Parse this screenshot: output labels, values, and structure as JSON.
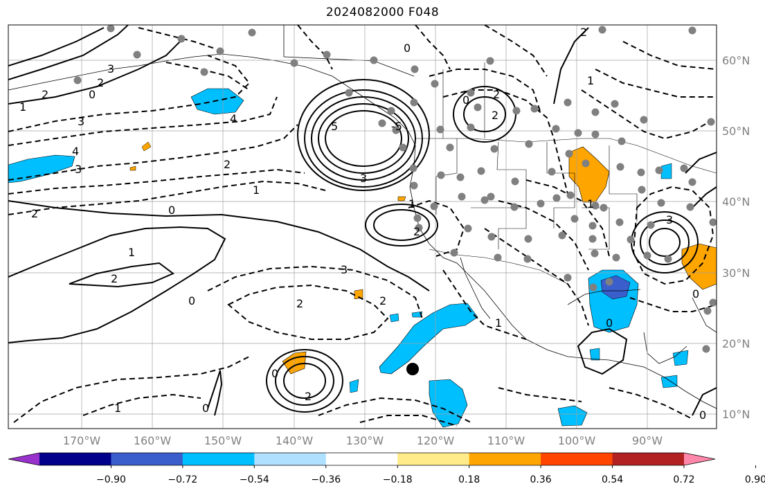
{
  "title": "2024082000 F048",
  "longitude_labels": [
    "170°W",
    "160°W",
    "150°W",
    "140°W",
    "130°W",
    "120°W",
    "110°W",
    "100°W",
    "90°W"
  ],
  "latitude_labels": [
    "60°N",
    "50°N",
    "40°N",
    "30°N",
    "20°N",
    "10°N"
  ],
  "colorbar": {
    "ticks": [
      "−0.90",
      "−0.72",
      "−0.54",
      "−0.36",
      "−0.18",
      "0.18",
      "0.36",
      "0.54",
      "0.72",
      "0.90"
    ],
    "colors": [
      "#9932cc",
      "#00008b",
      "#3a5fcd",
      "#00bfff",
      "#b0e0ff",
      "#ffffff",
      "#ffeb8a",
      "#ffa500",
      "#ff4500",
      "#b22222",
      "#ff88aa"
    ]
  },
  "contour_labels": [
    "3",
    "2",
    "0",
    "1",
    "2",
    "3",
    "4",
    "4",
    "3",
    "2",
    "1",
    "0",
    "2",
    "2",
    "3",
    "5",
    "-5",
    "3",
    "1",
    "1",
    "2",
    "1",
    "2",
    "0",
    "2",
    "2",
    "0",
    "0",
    "0",
    "1",
    "2",
    "2",
    "3",
    "0",
    "2",
    "1",
    "0",
    "0",
    "0",
    "1"
  ],
  "marker": "storm-center"
}
